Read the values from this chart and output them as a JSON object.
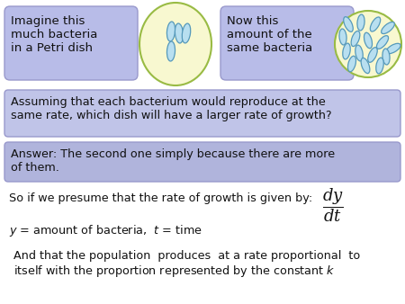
{
  "bg_color": "#ffffff",
  "top_box1_text": "Imagine this\nmuch bacteria\nin a Petri dish",
  "top_box2_text": "Now this\namount of the\nsame bacteria",
  "top_box_bg": "#b8bce8",
  "top_box_border": "#9999cc",
  "petri_fill": "#f8f8d0",
  "petri_border": "#99bb44",
  "bacteria_color": "#b8dff0",
  "bacteria_border": "#5599bb",
  "q_box_bg": "#c0c4e8",
  "q_box_border": "#9999cc",
  "a_box_bg": "#b0b4dc",
  "a_box_border": "#9999cc",
  "q_text": "Assuming that each bacterium would reproduce at the\nsame rate, which dish will have a larger rate of growth?",
  "a_text": "Answer: The second one simply because there are more\nof them.",
  "line3_text": "So if we presume that the rate of growth is given by:",
  "line4_text": "$y$ = amount of bacteria,  $t$ = time",
  "line5_text": "And that the population  produces  at a rate proportional  to\nitself with the proportion represented by the constant $k$",
  "text_color": "#111111",
  "fig_bg": "#ffffff",
  "bacteria1": [
    [
      -5,
      -14,
      9,
      22,
      5
    ],
    [
      4,
      -12,
      9,
      22,
      -5
    ],
    [
      12,
      -12,
      9,
      22,
      8
    ],
    [
      -5,
      8,
      9,
      22,
      3
    ]
  ],
  "bacteria2": [
    [
      -22,
      -22,
      8,
      18,
      -25
    ],
    [
      -8,
      -24,
      8,
      18,
      5
    ],
    [
      8,
      -22,
      8,
      18,
      30
    ],
    [
      22,
      -18,
      8,
      18,
      50
    ],
    [
      -28,
      -8,
      8,
      18,
      -5
    ],
    [
      -14,
      -6,
      8,
      18,
      20
    ],
    [
      0,
      -4,
      8,
      18,
      -15
    ],
    [
      16,
      -2,
      8,
      18,
      40
    ],
    [
      28,
      5,
      8,
      18,
      60
    ],
    [
      -24,
      8,
      8,
      18,
      10
    ],
    [
      -10,
      10,
      8,
      18,
      -10
    ],
    [
      5,
      12,
      8,
      18,
      25
    ],
    [
      20,
      14,
      8,
      18,
      -5
    ],
    [
      -18,
      22,
      8,
      18,
      15
    ],
    [
      -3,
      24,
      8,
      18,
      -20
    ],
    [
      13,
      24,
      8,
      18,
      10
    ]
  ]
}
